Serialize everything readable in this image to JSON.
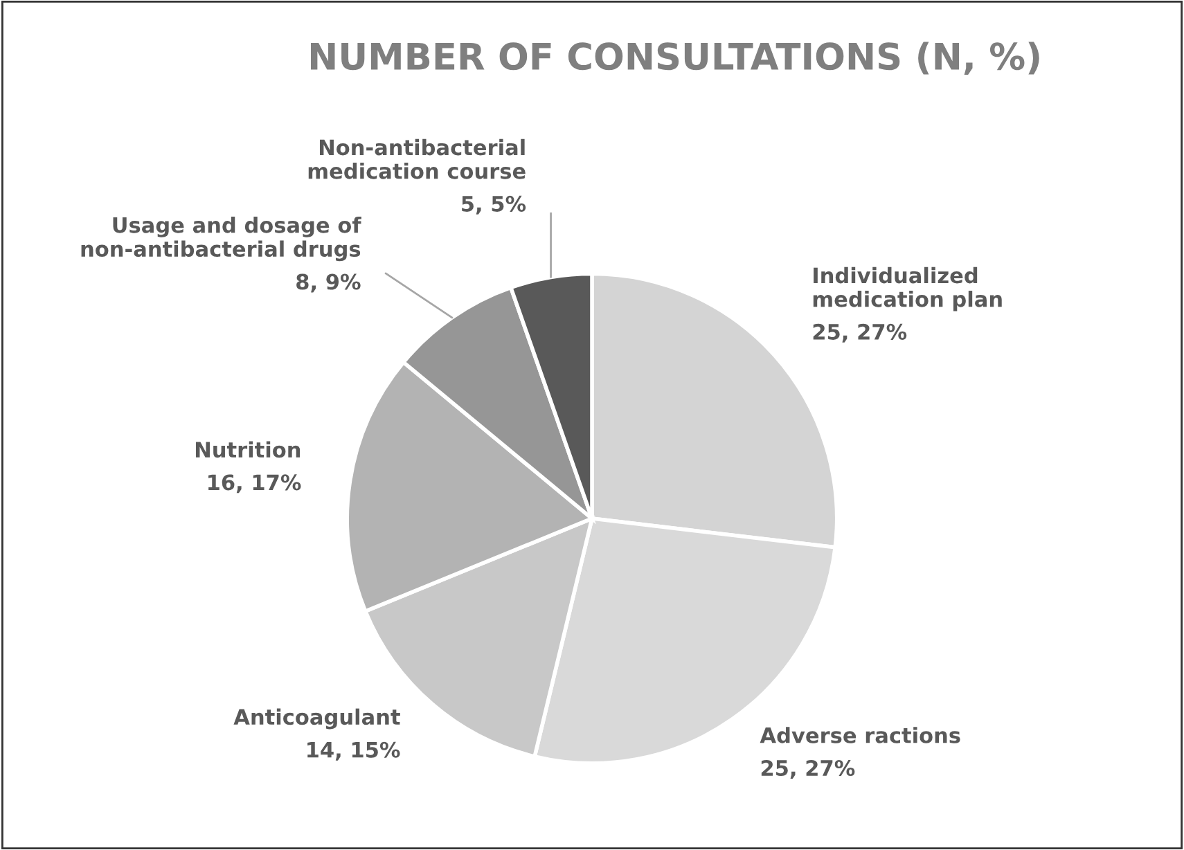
{
  "chart_data": {
    "type": "pie",
    "title": "NUMBER OF CONSULTATIONS (N, %)",
    "categories": [
      "Individualized medication plan",
      "Adverse ractions",
      "Anticoagulant",
      "Nutrition",
      "Usage and dosage of non-antibacterial drugs",
      "Non-antibacterial medication course"
    ],
    "values": [
      25,
      25,
      14,
      16,
      8,
      5
    ],
    "value_labels": [
      "25, 27%",
      "25, 27%",
      "14, 15%",
      "16, 17%",
      "8, 9%",
      "5, 5%"
    ],
    "colors": [
      "#d4d4d4",
      "#d9d9d9",
      "#c8c8c8",
      "#b3b3b3",
      "#969696",
      "#595959"
    ],
    "legend": false
  }
}
